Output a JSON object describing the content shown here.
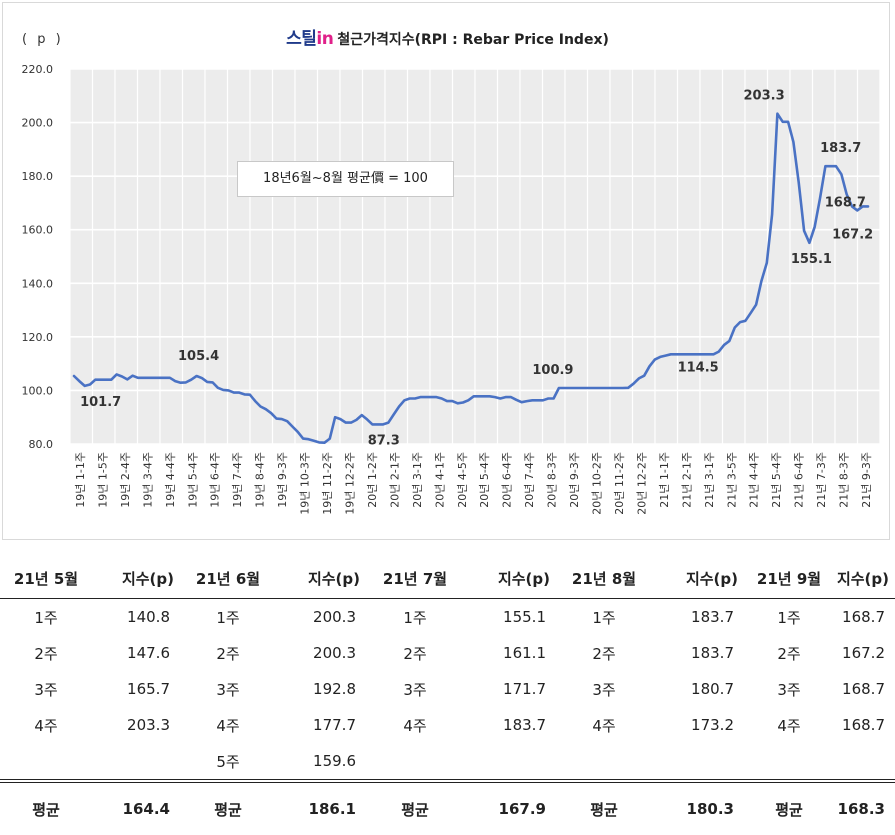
{
  "title": {
    "brand_prefix": "스틸",
    "brand_suffix": "in",
    "text": "철근가격지수(RPI : Rebar Price Index)"
  },
  "unit_label": "( p )",
  "note": "18년6월~8월 평균價 = 100",
  "chart_data": {
    "type": "line",
    "title": "철근가격지수(RPI : Rebar Price Index)",
    "ylabel": "( p )",
    "ylim": [
      80,
      220
    ],
    "yticks": [
      80,
      100,
      120,
      140,
      160,
      180,
      200,
      220
    ],
    "ytick_labels": [
      "80.0",
      "100.0",
      "120.0",
      "140.0",
      "160.0",
      "180.0",
      "200.0",
      "220.0"
    ],
    "grid": true,
    "x_tick_labels": [
      "19년 1-1주",
      "19년 1-5주",
      "19년 2-4주",
      "19년 3-4주",
      "19년 4-4주",
      "19년 5-4주",
      "19년 6-4주",
      "19년 7-4주",
      "19년 8-4주",
      "19년 9-3주",
      "19년 10-3주",
      "19년 11-2주",
      "19년 12-2주",
      "20년 1-2주",
      "20년 2-1주",
      "20년 3-1주",
      "20년 4-1주",
      "20년 4-5주",
      "20년 5-4주",
      "20년 6-4주",
      "20년 7-4주",
      "20년 8-3주",
      "20년 9-3주",
      "20년 10-2주",
      "20년 11-2주",
      "20년 12-2주",
      "21년 1-1주",
      "21년 2-1주",
      "21년 3-1주",
      "21년 3-5주",
      "21년 4-4주",
      "21년 5-4주",
      "21년 6-4주",
      "21년 7-3주",
      "21년 8-3주",
      "21년 9-3주"
    ],
    "series": [
      {
        "color": "#4a72c4",
        "values": [
          105.4,
          103.5,
          101.7,
          102.2,
          104.0,
          104.0,
          104.0,
          104.0,
          106.0,
          105.2,
          104.1,
          105.5,
          104.7,
          104.7,
          104.7,
          104.7,
          104.7,
          104.7,
          104.7,
          103.5,
          102.9,
          103.0,
          104.0,
          105.4,
          104.6,
          103.2,
          103.0,
          101.0,
          100.2,
          100.0,
          99.2,
          99.2,
          98.5,
          98.4,
          96.0,
          94.0,
          93.0,
          91.5,
          89.5,
          89.3,
          88.5,
          86.5,
          84.5,
          82.0,
          81.8,
          81.2,
          80.6,
          80.5,
          82.0,
          90.0,
          89.3,
          88.0,
          88.0,
          89.0,
          90.8,
          89.2,
          87.3,
          87.3,
          87.3,
          88.0,
          91.0,
          94.0,
          96.3,
          97.0,
          97.0,
          97.5,
          97.5,
          97.5,
          97.5,
          97.0,
          96.0,
          96.0,
          95.2,
          95.5,
          96.3,
          97.8,
          97.8,
          97.8,
          97.8,
          97.5,
          97.0,
          97.5,
          97.5,
          96.5,
          95.6,
          96.0,
          96.3,
          96.3,
          96.3,
          97.0,
          97.0,
          100.9,
          100.9,
          100.9,
          100.9,
          100.9,
          100.9,
          100.9,
          100.9,
          100.9,
          100.9,
          100.9,
          100.9,
          100.9,
          101.0,
          102.5,
          104.5,
          105.5,
          109.0,
          111.5,
          112.5,
          113.0,
          113.5,
          113.5,
          113.5,
          113.5,
          113.5,
          113.5,
          113.5,
          113.5,
          113.5,
          114.5,
          117.0,
          118.5,
          123.5,
          125.5,
          126.0,
          129.0,
          132.0,
          140.8,
          147.6,
          165.7,
          203.3,
          200.3,
          200.3,
          192.8,
          177.7,
          159.6,
          155.1,
          161.1,
          171.7,
          183.7,
          183.7,
          183.7,
          180.7,
          173.2,
          168.7,
          167.2,
          168.7,
          168.7
        ]
      }
    ],
    "annotations": [
      {
        "text": "101.7",
        "x_index": 2,
        "value": 101.7
      },
      {
        "text": "105.4",
        "x_index": 23,
        "value": 105.4
      },
      {
        "text": "87.3",
        "x_index": 57,
        "value": 87.3
      },
      {
        "text": "100.9",
        "x_index": 91,
        "value": 100.9
      },
      {
        "text": "114.5",
        "x_index": 119,
        "value": 114.5
      },
      {
        "text": "203.3",
        "x_index": 131,
        "value": 203.3
      },
      {
        "text": "155.1",
        "x_index": 138,
        "value": 155.1
      },
      {
        "text": "183.7",
        "x_index": 142,
        "value": 183.7
      },
      {
        "text": "168.7",
        "x_index": 147,
        "value": 168.7
      },
      {
        "text": "167.2",
        "x_index": 148,
        "value": 167.2
      }
    ]
  },
  "table": {
    "headers": [
      {
        "month": "21년 5월",
        "index": "지수(p)"
      },
      {
        "month": "21년 6월",
        "index": "지수(p)"
      },
      {
        "month": "21년 7월",
        "index": "지수(p)"
      },
      {
        "month": "21년 8월",
        "index": "지수(p)"
      },
      {
        "month": "21년 9월",
        "index": "지수(p)"
      }
    ],
    "rows": [
      {
        "cells": [
          [
            "1주",
            "140.8"
          ],
          [
            "1주",
            "200.3"
          ],
          [
            "1주",
            "155.1"
          ],
          [
            "1주",
            "183.7"
          ],
          [
            "1주",
            "168.7"
          ]
        ]
      },
      {
        "cells": [
          [
            "2주",
            "147.6"
          ],
          [
            "2주",
            "200.3"
          ],
          [
            "2주",
            "161.1"
          ],
          [
            "2주",
            "183.7"
          ],
          [
            "2주",
            "167.2"
          ]
        ]
      },
      {
        "cells": [
          [
            "3주",
            "165.7"
          ],
          [
            "3주",
            "192.8"
          ],
          [
            "3주",
            "171.7"
          ],
          [
            "3주",
            "180.7"
          ],
          [
            "3주",
            "168.7"
          ]
        ]
      },
      {
        "cells": [
          [
            "4주",
            "203.3"
          ],
          [
            "4주",
            "177.7"
          ],
          [
            "4주",
            "183.7"
          ],
          [
            "4주",
            "173.2"
          ],
          [
            "4주",
            "168.7"
          ]
        ]
      },
      {
        "cells": [
          [
            "",
            ""
          ],
          [
            "5주",
            "159.6"
          ],
          [
            "",
            ""
          ],
          [
            "",
            ""
          ],
          [
            "",
            ""
          ]
        ]
      }
    ],
    "average": [
      {
        "label": "평균",
        "value": "164.4"
      },
      {
        "label": "평균",
        "value": "186.1"
      },
      {
        "label": "평균",
        "value": "167.9"
      },
      {
        "label": "평균",
        "value": "180.3"
      },
      {
        "label": "평균",
        "value": "168.3"
      }
    ]
  }
}
